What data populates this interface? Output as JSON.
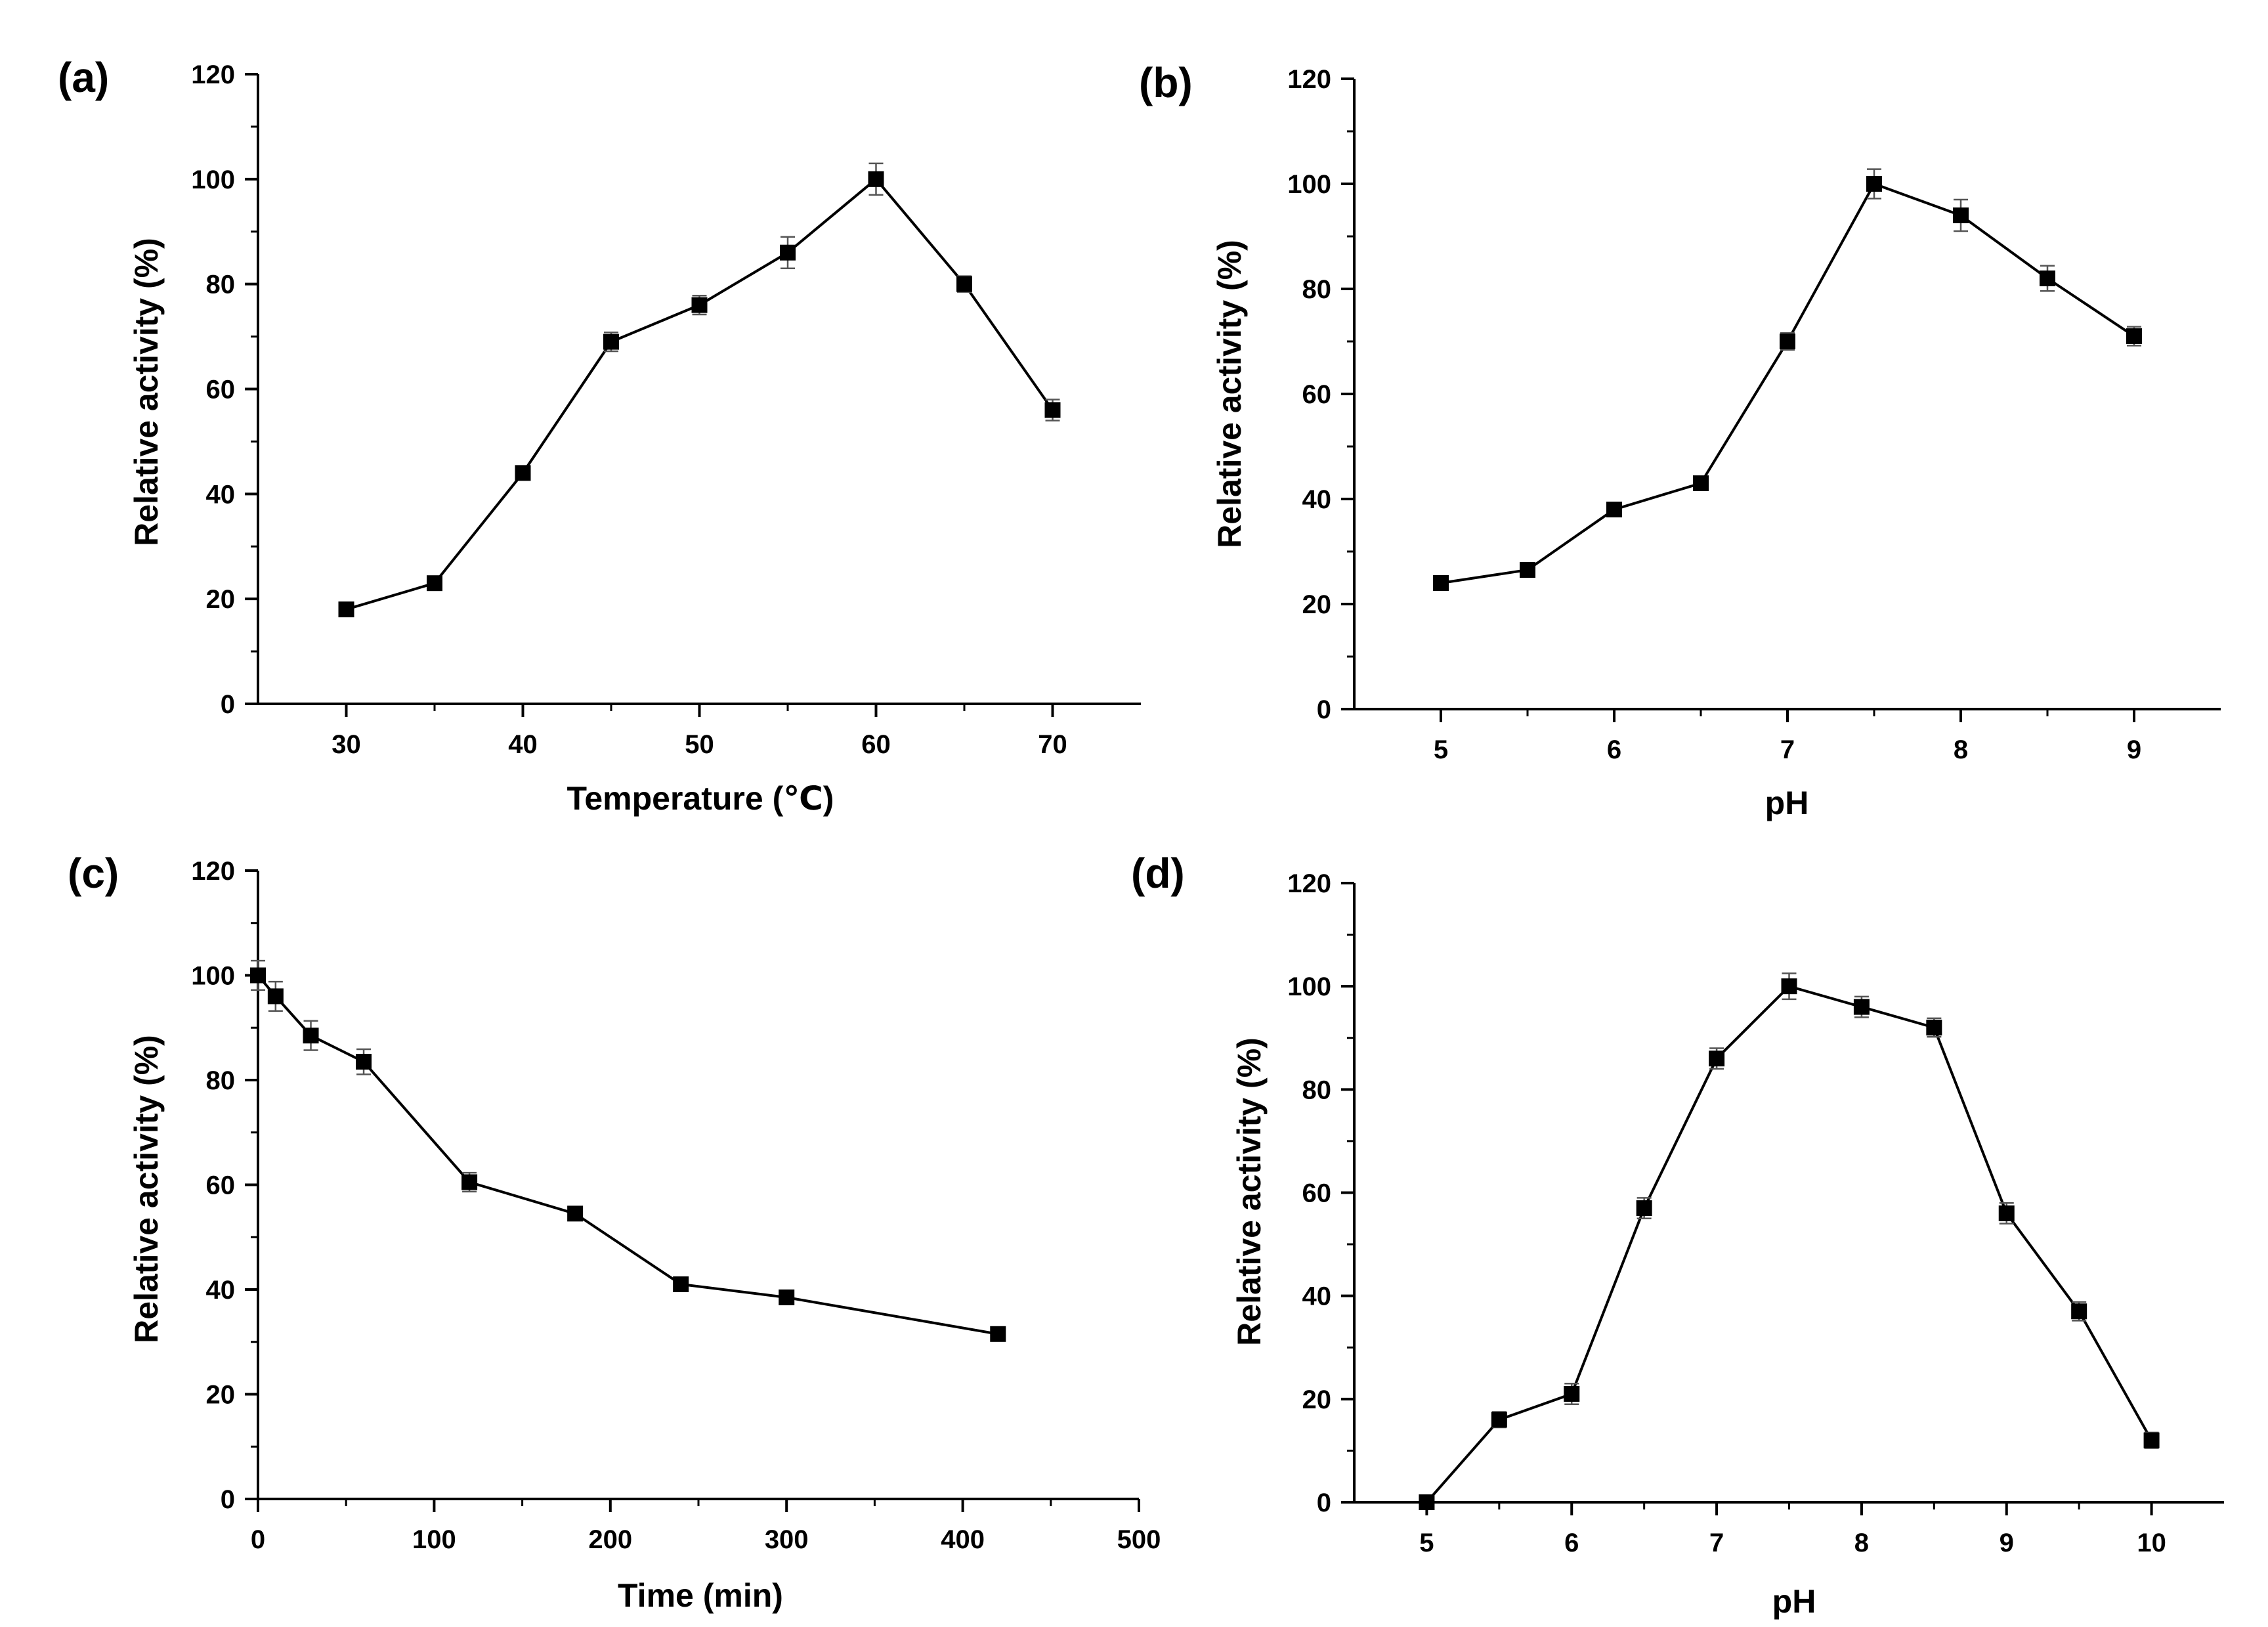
{
  "chart_data": [
    {
      "type": "line",
      "panel_label": "(a)",
      "title": "",
      "xlabel": "Temperature (℃)",
      "ylabel": "Relative activity (%)",
      "xlim": [
        25,
        75
      ],
      "ylim": [
        0,
        120
      ],
      "xticks": [
        30,
        40,
        50,
        60,
        70
      ],
      "xtick_labels": [
        "30",
        "40",
        "50",
        "60",
        "70"
      ],
      "yticks": [
        0,
        20,
        40,
        60,
        80,
        100,
        120
      ],
      "ytick_labels": [
        "0",
        "20",
        "40",
        "60",
        "80",
        "100",
        "120"
      ],
      "grid": false,
      "marker": "square",
      "series": [
        {
          "name": "",
          "x": [
            30,
            35,
            40,
            45,
            50,
            55,
            60,
            65,
            70
          ],
          "y": [
            18,
            23,
            44,
            69,
            76,
            86,
            100,
            80,
            56
          ],
          "err": [
            0.8,
            0.8,
            1.2,
            1.8,
            1.8,
            3,
            3,
            1.5,
            2
          ]
        }
      ]
    },
    {
      "type": "line",
      "panel_label": "(b)",
      "title": "",
      "xlabel": "pH",
      "ylabel": "Relative activity (%)",
      "xlim": [
        4.5,
        9.5
      ],
      "ylim": [
        0,
        120
      ],
      "xticks": [
        5,
        6,
        7,
        8,
        9
      ],
      "xtick_labels": [
        "5",
        "6",
        "7",
        "8",
        "9"
      ],
      "yticks": [
        0,
        20,
        40,
        60,
        80,
        100,
        120
      ],
      "ytick_labels": [
        "0",
        "20",
        "40",
        "60",
        "80",
        "100",
        "120"
      ],
      "grid": false,
      "marker": "square",
      "series": [
        {
          "name": "",
          "x": [
            5,
            5.5,
            6,
            6.5,
            7,
            7.5,
            8,
            8.5,
            9
          ],
          "y": [
            24,
            26.5,
            38,
            43,
            70,
            100,
            94,
            82,
            71
          ],
          "err": [
            0.8,
            0.8,
            0.8,
            1.2,
            1.6,
            2.8,
            3,
            2.4,
            1.8
          ]
        }
      ]
    },
    {
      "type": "line",
      "panel_label": "(c)",
      "title": "",
      "xlabel": "Time (min)",
      "ylabel": "Relative activity (%)",
      "xlim": [
        0,
        500
      ],
      "ylim": [
        0,
        120
      ],
      "xticks": [
        0,
        100,
        200,
        300,
        400,
        500
      ],
      "xtick_labels": [
        "0",
        "100",
        "200",
        "300",
        "400",
        "500"
      ],
      "yticks": [
        0,
        20,
        40,
        60,
        80,
        100,
        120
      ],
      "ytick_labels": [
        "0",
        "20",
        "40",
        "60",
        "80",
        "100",
        "120"
      ],
      "grid": false,
      "marker": "square",
      "series": [
        {
          "name": "",
          "x": [
            0,
            10,
            30,
            60,
            120,
            180,
            240,
            300,
            420
          ],
          "y": [
            100,
            96,
            88.5,
            83.5,
            60.5,
            54.5,
            41,
            38.5,
            31.5
          ],
          "err": [
            2.8,
            2.8,
            2.8,
            2.4,
            1.8,
            1,
            1,
            0.8,
            0.8
          ]
        }
      ]
    },
    {
      "type": "line",
      "panel_label": "(d)",
      "title": "",
      "xlabel": "pH",
      "ylabel": "Relative activity (%)",
      "xlim": [
        4.5,
        10.5
      ],
      "ylim": [
        0,
        120
      ],
      "xticks": [
        5,
        6,
        7,
        8,
        9,
        10
      ],
      "xtick_labels": [
        "5",
        "6",
        "7",
        "8",
        "9",
        "10"
      ],
      "yticks": [
        0,
        20,
        40,
        60,
        80,
        100,
        120
      ],
      "ytick_labels": [
        "0",
        "20",
        "40",
        "60",
        "80",
        "100",
        "120"
      ],
      "grid": false,
      "marker": "square",
      "series": [
        {
          "name": "",
          "x": [
            5,
            5.5,
            6,
            6.5,
            7,
            7.5,
            8,
            8.5,
            9,
            9.5,
            10
          ],
          "y": [
            0,
            16,
            21,
            57,
            86,
            100,
            96,
            92,
            56,
            37,
            12
          ],
          "err": [
            0.8,
            1.5,
            2,
            2,
            2,
            2.5,
            2,
            1.8,
            2,
            1.8,
            1.5
          ]
        }
      ]
    }
  ]
}
